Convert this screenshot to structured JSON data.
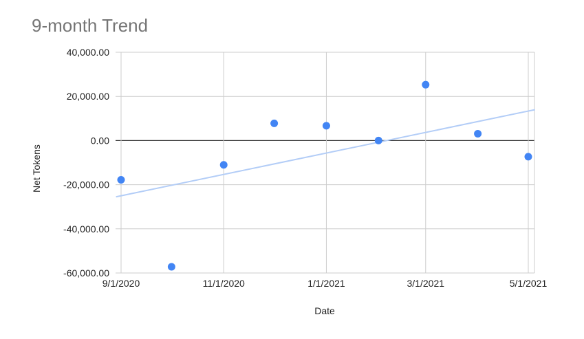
{
  "chart_data": {
    "type": "scatter",
    "title": "9-month Trend",
    "xlabel": "Date",
    "ylabel": "Net Tokens",
    "x_ticks": [
      "9/1/2020",
      "11/1/2020",
      "1/1/2021",
      "3/1/2021",
      "5/1/2021"
    ],
    "y_ticks": [
      "40,000.00",
      "20,000.00",
      "0.00",
      "-20,000.00",
      "-40,000.00",
      "-60,000.00"
    ],
    "ylim": [
      -60000,
      40000
    ],
    "xlim": [
      "2020-09-01",
      "2021-05-05"
    ],
    "grid": true,
    "legend": "none",
    "points": [
      {
        "x": "2020-09-01",
        "y": -17800
      },
      {
        "x": "2020-10-01",
        "y": -57200
      },
      {
        "x": "2020-11-01",
        "y": -11000
      },
      {
        "x": "2020-12-01",
        "y": 7800
      },
      {
        "x": "2021-01-01",
        "y": 6700
      },
      {
        "x": "2021-02-01",
        "y": 0
      },
      {
        "x": "2021-03-01",
        "y": 25300
      },
      {
        "x": "2021-04-01",
        "y": 3100
      },
      {
        "x": "2021-05-01",
        "y": -7300
      }
    ],
    "trendline": {
      "from": {
        "x": "2020-08-29",
        "y": -25500
      },
      "to": {
        "x": "2021-05-05",
        "y": 14000
      }
    },
    "colors": {
      "points": "#4285f4",
      "trendline": "#b3cdf7",
      "grid": "#cccccc",
      "zero_line": "#333333"
    }
  }
}
